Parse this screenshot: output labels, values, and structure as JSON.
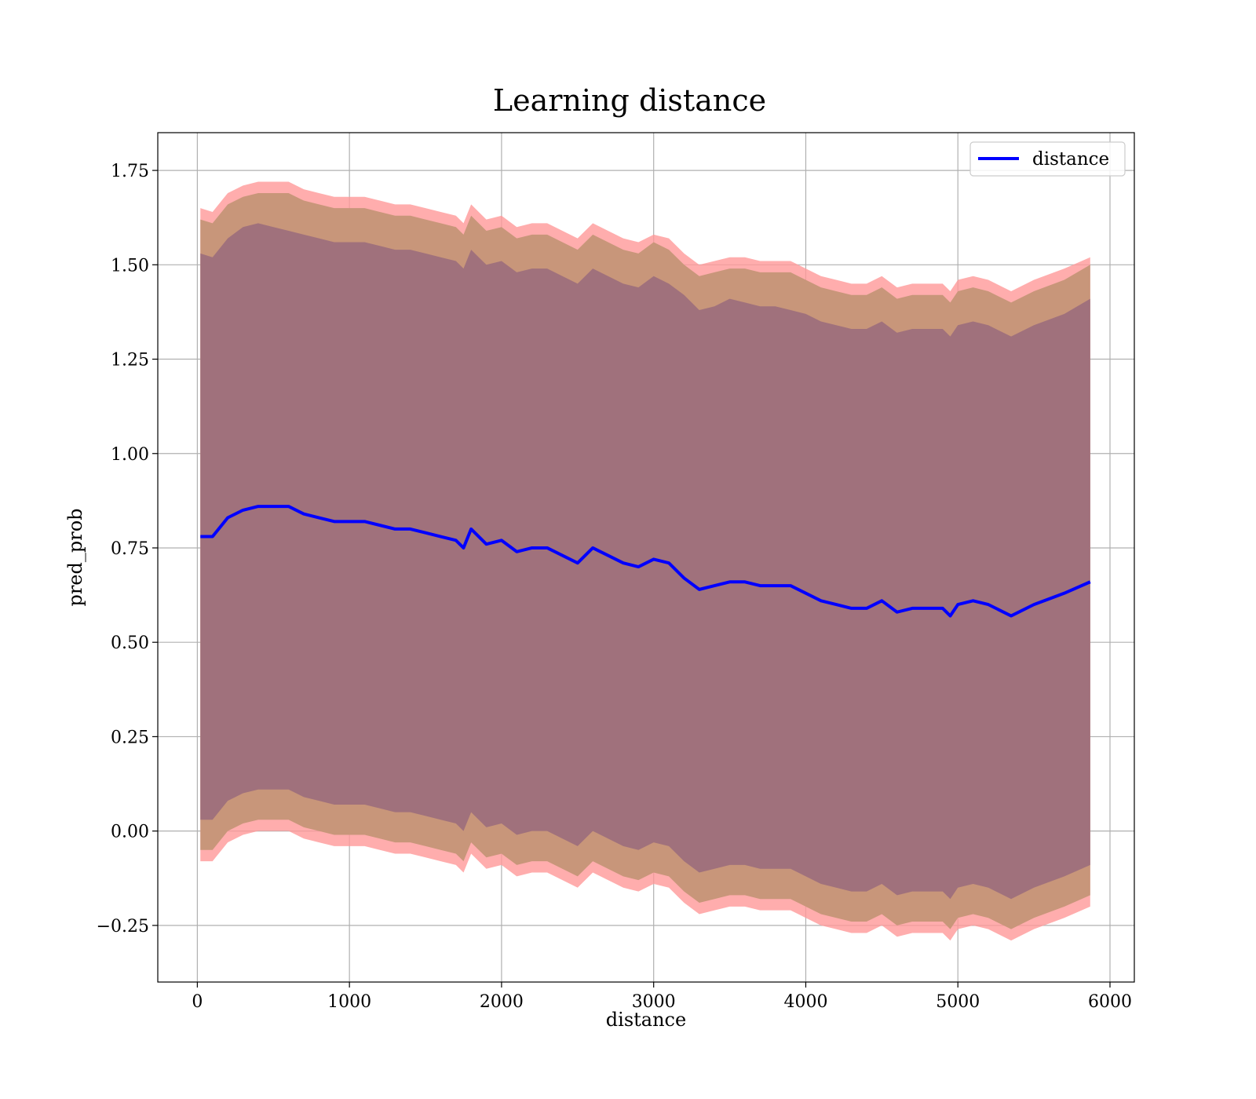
{
  "chart_data": {
    "type": "line",
    "title": "Learning distance",
    "xlabel": "distance",
    "ylabel": "pred_prob",
    "xlim": [
      -260,
      6160
    ],
    "ylim": [
      -0.4,
      1.85
    ],
    "xticks": [
      0,
      1000,
      2000,
      3000,
      4000,
      5000,
      6000
    ],
    "xtick_labels": [
      "0",
      "1000",
      "2000",
      "3000",
      "4000",
      "5000",
      "6000"
    ],
    "yticks": [
      -0.25,
      0.0,
      0.25,
      0.5,
      0.75,
      1.0,
      1.25,
      1.5,
      1.75
    ],
    "ytick_labels": [
      "−0.25",
      "0.00",
      "0.25",
      "0.50",
      "0.75",
      "1.00",
      "1.25",
      "1.50",
      "1.75"
    ],
    "grid": true,
    "legend": {
      "position": "top-right",
      "entries": [
        "distance"
      ]
    },
    "colors": {
      "line": "#0000ff",
      "band_outer": "#ff9999",
      "band_mid": "#c8967a",
      "band_inner": "#a0717c"
    },
    "x": [
      20,
      100,
      200,
      300,
      400,
      500,
      600,
      700,
      800,
      900,
      1000,
      1100,
      1200,
      1300,
      1400,
      1500,
      1600,
      1700,
      1750,
      1800,
      1850,
      1900,
      2000,
      2100,
      2200,
      2300,
      2400,
      2500,
      2600,
      2700,
      2800,
      2900,
      3000,
      3100,
      3200,
      3300,
      3400,
      3500,
      3600,
      3700,
      3800,
      3900,
      4000,
      4100,
      4200,
      4300,
      4400,
      4500,
      4600,
      4700,
      4800,
      4900,
      4950,
      5000,
      5100,
      5200,
      5350,
      5500,
      5700,
      5870
    ],
    "series": [
      {
        "name": "distance",
        "values": [
          0.78,
          0.78,
          0.83,
          0.85,
          0.86,
          0.86,
          0.86,
          0.84,
          0.83,
          0.82,
          0.82,
          0.82,
          0.81,
          0.8,
          0.8,
          0.79,
          0.78,
          0.77,
          0.75,
          0.8,
          0.78,
          0.76,
          0.77,
          0.74,
          0.75,
          0.75,
          0.73,
          0.71,
          0.75,
          0.73,
          0.71,
          0.7,
          0.72,
          0.71,
          0.67,
          0.64,
          0.65,
          0.66,
          0.66,
          0.65,
          0.65,
          0.65,
          0.63,
          0.61,
          0.6,
          0.59,
          0.59,
          0.61,
          0.58,
          0.59,
          0.59,
          0.59,
          0.57,
          0.6,
          0.61,
          0.6,
          0.57,
          0.6,
          0.63,
          0.66
        ],
        "band_inner_upper": [
          1.53,
          1.52,
          1.57,
          1.6,
          1.61,
          1.6,
          1.59,
          1.58,
          1.57,
          1.56,
          1.56,
          1.56,
          1.55,
          1.54,
          1.54,
          1.53,
          1.52,
          1.51,
          1.49,
          1.54,
          1.52,
          1.5,
          1.51,
          1.48,
          1.49,
          1.49,
          1.47,
          1.45,
          1.49,
          1.47,
          1.45,
          1.44,
          1.47,
          1.45,
          1.42,
          1.38,
          1.39,
          1.41,
          1.4,
          1.39,
          1.39,
          1.38,
          1.37,
          1.35,
          1.34,
          1.33,
          1.33,
          1.35,
          1.32,
          1.33,
          1.33,
          1.33,
          1.31,
          1.34,
          1.35,
          1.34,
          1.31,
          1.34,
          1.37,
          1.41
        ],
        "band_inner_lower": [
          0.03,
          0.03,
          0.08,
          0.1,
          0.11,
          0.11,
          0.11,
          0.09,
          0.08,
          0.07,
          0.07,
          0.07,
          0.06,
          0.05,
          0.05,
          0.04,
          0.03,
          0.02,
          0.0,
          0.05,
          0.03,
          0.01,
          0.02,
          -0.01,
          0.0,
          0.0,
          -0.02,
          -0.04,
          0.0,
          -0.02,
          -0.04,
          -0.05,
          -0.03,
          -0.04,
          -0.08,
          -0.11,
          -0.1,
          -0.09,
          -0.09,
          -0.1,
          -0.1,
          -0.1,
          -0.12,
          -0.14,
          -0.15,
          -0.16,
          -0.16,
          -0.14,
          -0.17,
          -0.16,
          -0.16,
          -0.16,
          -0.18,
          -0.15,
          -0.14,
          -0.15,
          -0.18,
          -0.15,
          -0.12,
          -0.09
        ],
        "band_mid_upper": [
          1.62,
          1.61,
          1.66,
          1.68,
          1.69,
          1.69,
          1.69,
          1.67,
          1.66,
          1.65,
          1.65,
          1.65,
          1.64,
          1.63,
          1.63,
          1.62,
          1.61,
          1.6,
          1.58,
          1.63,
          1.61,
          1.59,
          1.6,
          1.57,
          1.58,
          1.58,
          1.56,
          1.54,
          1.58,
          1.56,
          1.54,
          1.53,
          1.56,
          1.54,
          1.5,
          1.47,
          1.48,
          1.49,
          1.49,
          1.48,
          1.48,
          1.48,
          1.46,
          1.44,
          1.43,
          1.42,
          1.42,
          1.44,
          1.41,
          1.42,
          1.42,
          1.42,
          1.4,
          1.43,
          1.44,
          1.43,
          1.4,
          1.43,
          1.46,
          1.5
        ],
        "band_mid_lower": [
          -0.05,
          -0.05,
          0.0,
          0.02,
          0.03,
          0.03,
          0.03,
          0.01,
          0.0,
          -0.01,
          -0.01,
          -0.01,
          -0.02,
          -0.03,
          -0.03,
          -0.04,
          -0.05,
          -0.06,
          -0.08,
          -0.03,
          -0.05,
          -0.07,
          -0.06,
          -0.09,
          -0.08,
          -0.08,
          -0.1,
          -0.12,
          -0.08,
          -0.1,
          -0.12,
          -0.13,
          -0.11,
          -0.12,
          -0.16,
          -0.19,
          -0.18,
          -0.17,
          -0.17,
          -0.18,
          -0.18,
          -0.18,
          -0.2,
          -0.22,
          -0.23,
          -0.24,
          -0.24,
          -0.22,
          -0.25,
          -0.24,
          -0.24,
          -0.24,
          -0.26,
          -0.23,
          -0.22,
          -0.23,
          -0.26,
          -0.23,
          -0.2,
          -0.17
        ],
        "band_outer_upper": [
          1.65,
          1.64,
          1.69,
          1.71,
          1.72,
          1.72,
          1.72,
          1.7,
          1.69,
          1.68,
          1.68,
          1.68,
          1.67,
          1.66,
          1.66,
          1.65,
          1.64,
          1.63,
          1.61,
          1.66,
          1.64,
          1.62,
          1.63,
          1.6,
          1.61,
          1.61,
          1.59,
          1.57,
          1.61,
          1.59,
          1.57,
          1.56,
          1.58,
          1.57,
          1.53,
          1.5,
          1.51,
          1.52,
          1.52,
          1.51,
          1.51,
          1.51,
          1.49,
          1.47,
          1.46,
          1.45,
          1.45,
          1.47,
          1.44,
          1.45,
          1.45,
          1.45,
          1.43,
          1.46,
          1.47,
          1.46,
          1.43,
          1.46,
          1.49,
          1.52
        ],
        "band_outer_lower": [
          -0.08,
          -0.08,
          -0.03,
          -0.01,
          0.0,
          0.0,
          0.0,
          -0.02,
          -0.03,
          -0.04,
          -0.04,
          -0.04,
          -0.05,
          -0.06,
          -0.06,
          -0.07,
          -0.08,
          -0.09,
          -0.11,
          -0.06,
          -0.08,
          -0.1,
          -0.09,
          -0.12,
          -0.11,
          -0.11,
          -0.13,
          -0.15,
          -0.11,
          -0.13,
          -0.15,
          -0.16,
          -0.14,
          -0.15,
          -0.19,
          -0.22,
          -0.21,
          -0.2,
          -0.2,
          -0.21,
          -0.21,
          -0.21,
          -0.23,
          -0.25,
          -0.26,
          -0.27,
          -0.27,
          -0.25,
          -0.28,
          -0.27,
          -0.27,
          -0.27,
          -0.29,
          -0.26,
          -0.25,
          -0.26,
          -0.29,
          -0.26,
          -0.23,
          -0.2
        ]
      }
    ]
  }
}
